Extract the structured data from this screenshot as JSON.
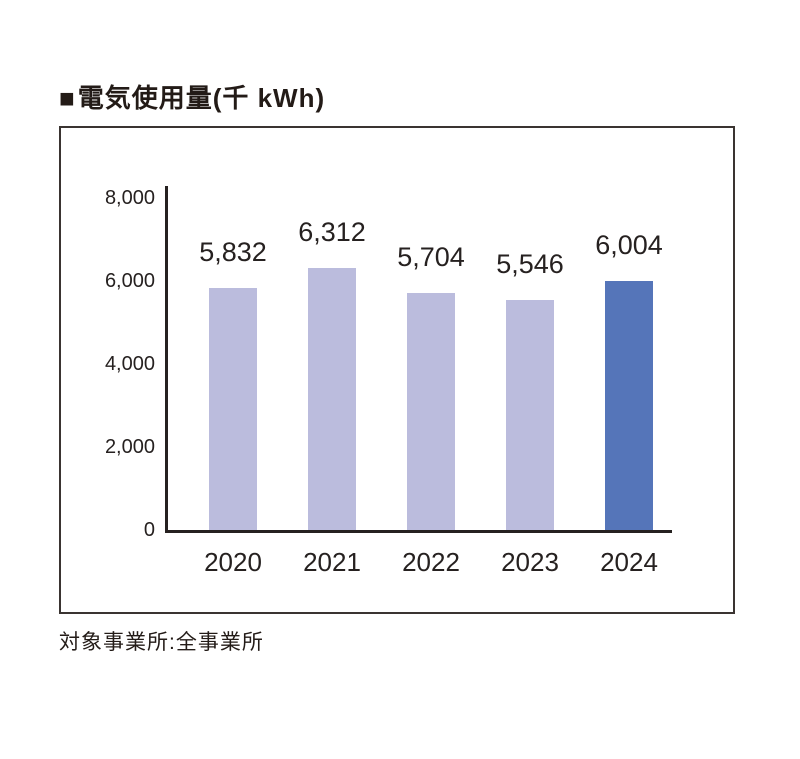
{
  "header": {
    "bullet": "■",
    "title": "電気使用量(千 kWh)"
  },
  "caption": "対象事業所:全事業所",
  "chart_data": {
    "type": "bar",
    "title": "電気使用量(千 kWh)",
    "categories": [
      "2020",
      "2021",
      "2022",
      "2023",
      "2024"
    ],
    "values": [
      5832,
      6312,
      5704,
      5546,
      6004
    ],
    "value_labels": [
      "5,832",
      "6,312",
      "5,704",
      "5,546",
      "6,004"
    ],
    "highlight_index": 4,
    "ylim": [
      0,
      8000
    ],
    "yticks": [
      {
        "value": 8000,
        "label": "8,000"
      },
      {
        "value": 6000,
        "label": "6,000"
      },
      {
        "value": 4000,
        "label": "4,000"
      },
      {
        "value": 2000,
        "label": "2,000"
      },
      {
        "value": 0,
        "label": "0"
      }
    ],
    "grid": false,
    "legend": "none",
    "colors": {
      "bar": "#bbbcdd",
      "bar_highlight": "#5575b9",
      "axis": "#262120",
      "text": "#262120"
    }
  }
}
